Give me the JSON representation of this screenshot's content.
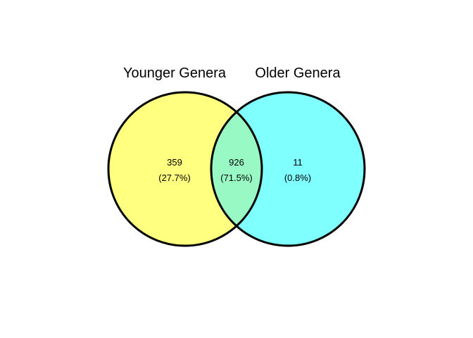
{
  "diagram": {
    "type": "venn",
    "sets": [
      {
        "name": "Younger Genera",
        "color": "#FFFF80"
      },
      {
        "name": "Older Genera",
        "color": "#80FFFF"
      }
    ],
    "overlap_color": "#99F9C4",
    "outline_color": "#000000",
    "regions": [
      {
        "id": "younger_only",
        "count": "359",
        "percent": "(27.7%)"
      },
      {
        "id": "both",
        "count": "926",
        "percent": "(71.5%)"
      },
      {
        "id": "older_only",
        "count": "11",
        "percent": "(0.8%)"
      }
    ]
  }
}
